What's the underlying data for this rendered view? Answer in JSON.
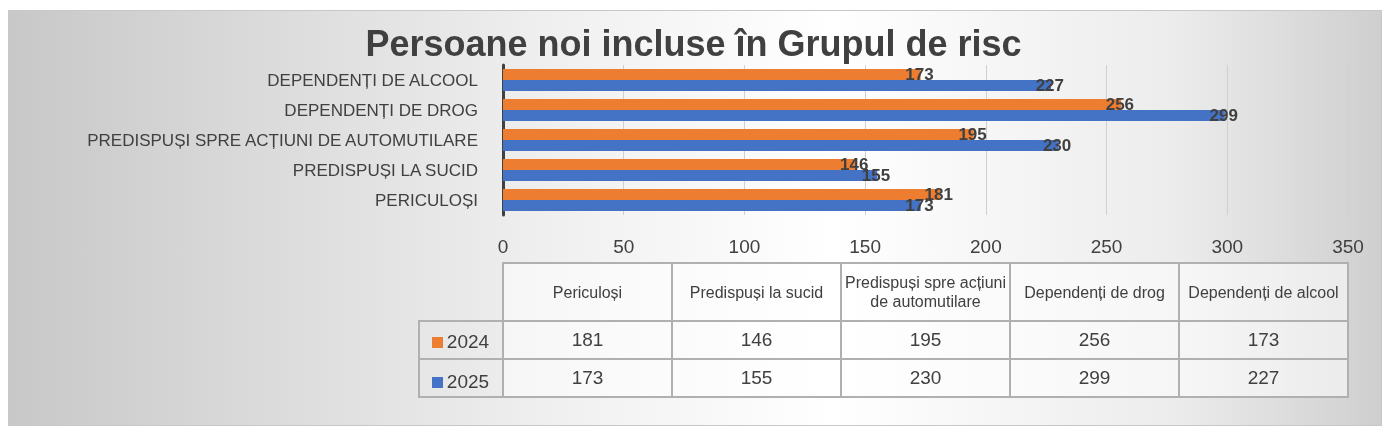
{
  "chart_data": [
    {
      "type": "bar",
      "title": "Persoane noi incluse în Grupul de risc",
      "orientation": "horizontal",
      "categories": [
        "DEPENDENȚI DE ALCOOL",
        "DEPENDENȚI DE DROG",
        "PREDISPUȘI SPRE ACȚIUNI DE AUTOMUTILARE",
        "PREDISPUȘI LA SUCID",
        "PERICULOȘI"
      ],
      "series": [
        {
          "name": "2024",
          "color": "#ed7d31",
          "values": [
            173,
            256,
            195,
            146,
            181
          ]
        },
        {
          "name": "2025",
          "color": "#4472c4",
          "values": [
            227,
            299,
            230,
            155,
            173
          ]
        }
      ],
      "xlim": [
        0,
        350
      ],
      "xticks": [
        0,
        50,
        100,
        150,
        200,
        250,
        300,
        350
      ],
      "grid": "x",
      "legend": "bottom",
      "data_labels": true
    },
    {
      "type": "other",
      "categories": [
        "Periculoși",
        "Predispuși la sucid",
        "Predispuși spre acțiuni de automutilare",
        "Dependenți de drog",
        "Dependenți de alcool"
      ],
      "series": [
        {
          "values": [
            181,
            146,
            195,
            256,
            173
          ]
        },
        {
          "values": [
            173,
            155,
            230,
            299,
            227
          ]
        }
      ],
      "data_labels": true
    }
  ]
}
